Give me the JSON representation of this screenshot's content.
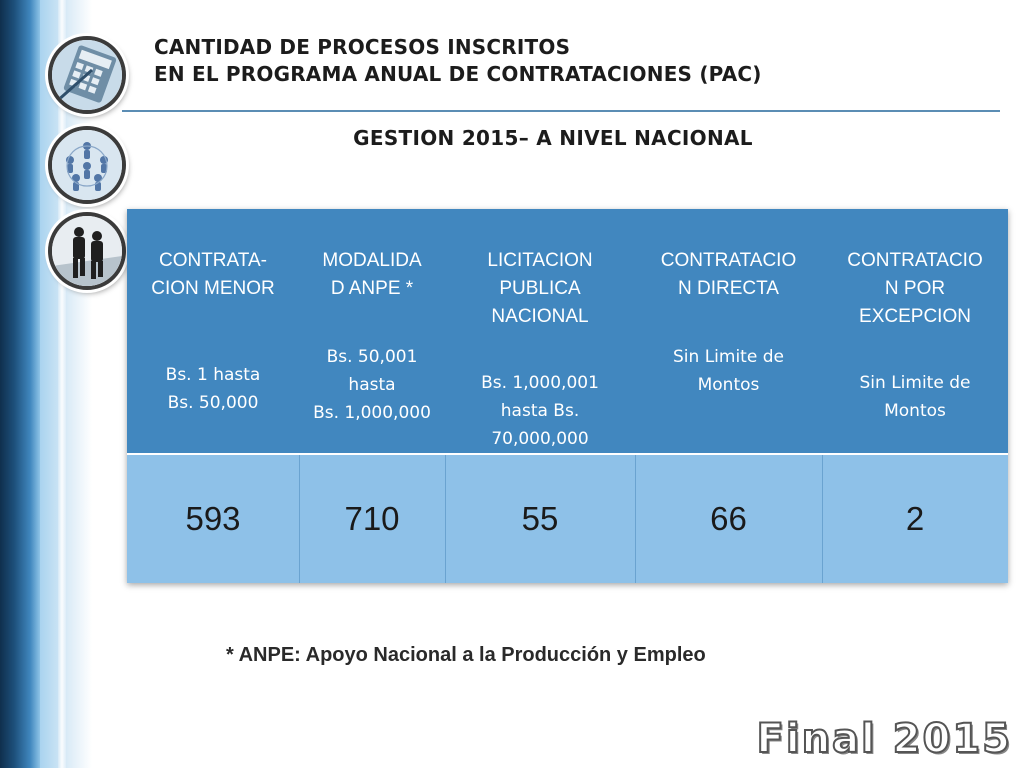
{
  "header": {
    "title_line1": "CANTIDAD DE PROCESOS INSCRITOS",
    "title_line2": "EN EL PROGRAMA ANUAL DE CONTRATACIONES (PAC)",
    "subtitle": "GESTION  2015– A NIVEL  NACIONAL"
  },
  "table": {
    "columns": [
      {
        "label_lines": [
          "CONTRATA-",
          "CION MENOR"
        ],
        "range_lines": [
          "Bs. 1 hasta",
          "Bs. 50,000"
        ],
        "value": "593"
      },
      {
        "label_lines": [
          "MODALIDA",
          "D ANPE *"
        ],
        "range_lines": [
          "Bs. 50,001",
          "hasta",
          "Bs. 1,000,000"
        ],
        "value": "710"
      },
      {
        "label_lines": [
          "LICITACION",
          "PUBLICA",
          "NACIONAL"
        ],
        "range_lines": [
          "Bs. 1,000,001",
          "hasta    Bs.",
          "70,000,000"
        ],
        "value": "55"
      },
      {
        "label_lines": [
          "CONTRATACIO",
          "N DIRECTA"
        ],
        "range_lines": [
          "Sin Limite de",
          "Montos"
        ],
        "value": "66"
      },
      {
        "label_lines": [
          "CONTRATACIO",
          "N POR",
          "EXCEPCION"
        ],
        "range_lines": [
          "Sin Limite de",
          "Montos"
        ],
        "value": "2"
      }
    ]
  },
  "footnote": "* ANPE: Apoyo Nacional a la Producción y Empleo",
  "stamp": "Final 2015",
  "colors": {
    "header_row": "#4187bf",
    "value_row": "#8ec1e8",
    "side_band": "#1d4f7a"
  },
  "icons": [
    "calculator-icon",
    "people-network-icon",
    "businessmen-icon"
  ]
}
